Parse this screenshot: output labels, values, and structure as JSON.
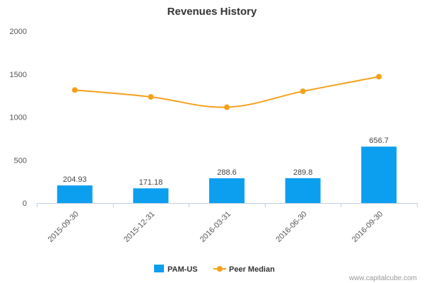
{
  "chart_data": {
    "type": "bar",
    "title": "Revenues History",
    "categories": [
      "2015-09-30",
      "2015-12-31",
      "2016-03-31",
      "2016-06-30",
      "2016-09-30"
    ],
    "series": [
      {
        "name": "PAM-US",
        "type": "bar",
        "color": "#0d9fef",
        "values": [
          204.93,
          171.18,
          288.6,
          289.8,
          656.7
        ],
        "labels": [
          "204.93",
          "171.18",
          "288.6",
          "289.8",
          "656.7"
        ]
      },
      {
        "name": "Peer Median",
        "type": "line",
        "color": "#f5a01a",
        "values": [
          1315,
          1235,
          1115,
          1300,
          1470
        ]
      }
    ],
    "ylim": [
      0,
      2000
    ],
    "yticks": [
      "0",
      "500",
      "1000",
      "1500",
      "2000"
    ],
    "legend_position": "bottom"
  },
  "credit": "www.capitalcube.com"
}
